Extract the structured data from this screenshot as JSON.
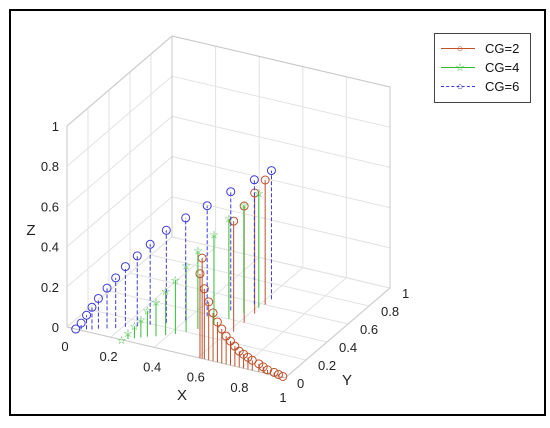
{
  "chart_data": {
    "type": "scatter",
    "title": "",
    "xlabel": "X",
    "ylabel": "Y",
    "zlabel": "Z",
    "xlim": [
      0,
      1
    ],
    "ylim": [
      0,
      1
    ],
    "zlim": [
      0,
      1
    ],
    "x_ticks": [
      "0",
      "0.2",
      "0.4",
      "0.6",
      "0.8",
      "1"
    ],
    "y_ticks": [
      "0",
      "0.2",
      "0.4",
      "0.6",
      "0.8",
      "1"
    ],
    "z_ticks": [
      "0",
      "0.2",
      "0.4",
      "0.6",
      "0.8",
      "1"
    ],
    "grid": true,
    "legend_position": "top-right",
    "series": [
      {
        "name": "CG=2",
        "color": "#c0502a",
        "line_style": "solid",
        "marker": "circle",
        "stems": true,
        "x": [
          0.62,
          0.61,
          0.63,
          0.65,
          0.67,
          0.69,
          0.71,
          0.73,
          0.75,
          0.77,
          0.79,
          0.81,
          0.83,
          0.85,
          0.88,
          0.9,
          0.92,
          0.95,
          0.97,
          0.99
        ],
        "y": [
          0.0,
          0.0,
          0.0,
          0.0,
          0.0,
          0.0,
          0.0,
          0.0,
          0.0,
          0.0,
          0.0,
          0.0,
          0.0,
          0.0,
          0.0,
          0.0,
          0.0,
          0.0,
          0.0,
          0.0
        ],
        "z": [
          0.5,
          0.42,
          0.35,
          0.29,
          0.24,
          0.2,
          0.17,
          0.14,
          0.12,
          0.1,
          0.08,
          0.07,
          0.06,
          0.05,
          0.04,
          0.03,
          0.02,
          0.015,
          0.01,
          0.005
        ]
      },
      {
        "name": "CG=2",
        "color": "#c0502a",
        "line_style": "solid",
        "marker": "circle",
        "stems": true,
        "x": [
          0.62,
          0.62,
          0.62,
          0.62
        ],
        "y": [
          0.3,
          0.4,
          0.5,
          0.6
        ],
        "z": [
          0.55,
          0.58,
          0.6,
          0.62
        ]
      },
      {
        "name": "CG=4",
        "color": "#33bb33",
        "line_style": "solid",
        "marker": "star",
        "stems": true,
        "x": [
          0.25,
          0.27,
          0.29,
          0.31,
          0.33,
          0.36,
          0.39,
          0.42,
          0.45,
          0.48,
          0.52,
          0.55,
          0.58,
          0.61
        ],
        "y": [
          0.0,
          0.02,
          0.04,
          0.06,
          0.08,
          0.1,
          0.13,
          0.16,
          0.2,
          0.25,
          0.32,
          0.4,
          0.48,
          0.56
        ],
        "z": [
          0.0,
          0.03,
          0.06,
          0.09,
          0.13,
          0.17,
          0.22,
          0.27,
          0.33,
          0.39,
          0.45,
          0.5,
          0.54,
          0.57
        ]
      },
      {
        "name": "CG=6",
        "color": "#3b3bd6",
        "line_style": "dashed",
        "marker": "circle",
        "stems": true,
        "x": [
          0.04,
          0.06,
          0.08,
          0.1,
          0.12,
          0.15,
          0.18,
          0.21,
          0.25,
          0.29,
          0.34,
          0.4,
          0.46,
          0.52,
          0.58,
          0.62
        ],
        "y": [
          0.0,
          0.01,
          0.02,
          0.03,
          0.05,
          0.07,
          0.09,
          0.12,
          0.15,
          0.19,
          0.24,
          0.3,
          0.38,
          0.48,
          0.58,
          0.66
        ],
        "z": [
          0.0,
          0.03,
          0.07,
          0.11,
          0.15,
          0.2,
          0.25,
          0.3,
          0.35,
          0.4,
          0.46,
          0.51,
          0.55,
          0.59,
          0.62,
          0.64
        ]
      }
    ]
  }
}
